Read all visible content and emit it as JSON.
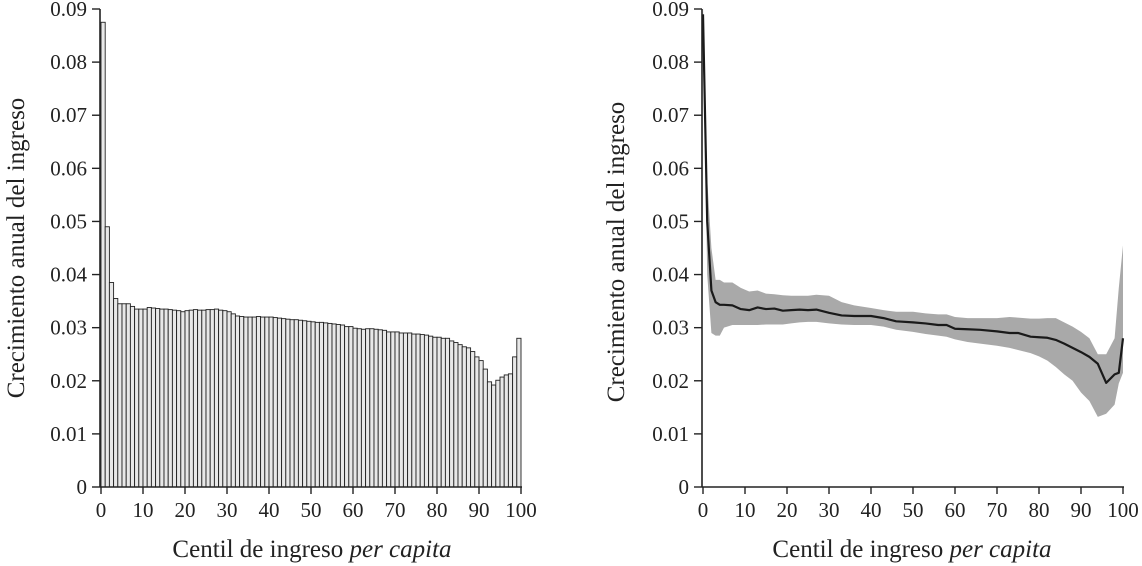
{
  "chart_data": [
    {
      "type": "bar",
      "xlabel": "Centil de ingreso",
      "xlabel_italic": "per capita",
      "ylabel": "Crecimiento anual del ingreso",
      "xlim": [
        0,
        100
      ],
      "ylim": [
        0,
        0.09
      ],
      "xticks": [
        "0",
        "10",
        "20",
        "30",
        "40",
        "50",
        "60",
        "70",
        "80",
        "90",
        "100"
      ],
      "yticks": [
        "0",
        "0.01",
        "0.02",
        "0.03",
        "0.04",
        "0.05",
        "0.06",
        "0.07",
        "0.08",
        "0.09"
      ],
      "bar_color": "#e8e8e8",
      "x": [
        0,
        1,
        2,
        3,
        4,
        5,
        6,
        7,
        8,
        9,
        10,
        11,
        12,
        13,
        14,
        15,
        16,
        17,
        18,
        19,
        20,
        21,
        22,
        23,
        24,
        25,
        26,
        27,
        28,
        29,
        30,
        31,
        32,
        33,
        34,
        35,
        36,
        37,
        38,
        39,
        40,
        41,
        42,
        43,
        44,
        45,
        46,
        47,
        48,
        49,
        50,
        51,
        52,
        53,
        54,
        55,
        56,
        57,
        58,
        59,
        60,
        61,
        62,
        63,
        64,
        65,
        66,
        67,
        68,
        69,
        70,
        71,
        72,
        73,
        74,
        75,
        76,
        77,
        78,
        79,
        80,
        81,
        82,
        83,
        84,
        85,
        86,
        87,
        88,
        89,
        90,
        91,
        92,
        93,
        94,
        95,
        96,
        97,
        98,
        99
      ],
      "values": [
        0.0875,
        0.049,
        0.0385,
        0.0355,
        0.0345,
        0.0345,
        0.0345,
        0.034,
        0.0335,
        0.0335,
        0.0335,
        0.0338,
        0.0337,
        0.0336,
        0.0335,
        0.0335,
        0.0334,
        0.0333,
        0.0332,
        0.033,
        0.0332,
        0.0333,
        0.0334,
        0.0333,
        0.0333,
        0.0334,
        0.0334,
        0.0335,
        0.0333,
        0.0332,
        0.033,
        0.0326,
        0.0322,
        0.0321,
        0.032,
        0.032,
        0.032,
        0.0321,
        0.032,
        0.032,
        0.032,
        0.0319,
        0.0318,
        0.0317,
        0.0316,
        0.0315,
        0.0315,
        0.0314,
        0.0313,
        0.0312,
        0.0311,
        0.031,
        0.031,
        0.0309,
        0.0308,
        0.0307,
        0.0306,
        0.0305,
        0.0302,
        0.0302,
        0.0299,
        0.0298,
        0.0297,
        0.0298,
        0.0298,
        0.0297,
        0.0296,
        0.0295,
        0.0292,
        0.0292,
        0.0292,
        0.029,
        0.029,
        0.029,
        0.0288,
        0.0288,
        0.0287,
        0.0286,
        0.0284,
        0.0282,
        0.0282,
        0.028,
        0.028,
        0.0275,
        0.0272,
        0.0268,
        0.0264,
        0.0262,
        0.0255,
        0.0245,
        0.0238,
        0.0222,
        0.0198,
        0.0192,
        0.0201,
        0.0207,
        0.0211,
        0.0213,
        0.0245,
        0.028
      ]
    },
    {
      "type": "line",
      "xlabel": "Centil de ingreso",
      "xlabel_italic": "per capita",
      "ylabel": "Crecimiento anual del ingreso",
      "xlim": [
        0,
        100
      ],
      "ylim": [
        0,
        0.09
      ],
      "xticks": [
        "0",
        "10",
        "20",
        "30",
        "40",
        "50",
        "60",
        "70",
        "80",
        "90",
        "100"
      ],
      "yticks": [
        "0",
        "0.01",
        "0.02",
        "0.03",
        "0.04",
        "0.05",
        "0.06",
        "0.07",
        "0.08",
        "0.09"
      ],
      "line_color": "#1a1a1a",
      "band_color": "#a9a9a9",
      "series": [
        {
          "x": [
            0,
            1,
            2,
            3,
            4,
            5,
            7,
            9,
            11,
            13,
            15,
            17,
            19,
            21,
            23,
            25,
            27,
            30,
            33,
            36,
            40,
            43,
            46,
            50,
            53,
            56,
            58,
            60,
            63,
            66,
            70,
            73,
            75,
            78,
            80,
            82,
            84,
            86,
            88,
            90,
            92,
            94,
            96,
            98,
            99,
            100
          ],
          "y": [
            0.089,
            0.05,
            0.037,
            0.0348,
            0.0343,
            0.0343,
            0.0342,
            0.0335,
            0.0333,
            0.0338,
            0.0335,
            0.0336,
            0.0332,
            0.0333,
            0.0334,
            0.0333,
            0.0334,
            0.0328,
            0.0323,
            0.0322,
            0.0322,
            0.0318,
            0.0312,
            0.031,
            0.0308,
            0.0305,
            0.0305,
            0.0298,
            0.0297,
            0.0296,
            0.0293,
            0.029,
            0.029,
            0.0283,
            0.0282,
            0.0281,
            0.0277,
            0.027,
            0.0262,
            0.0254,
            0.0245,
            0.0232,
            0.0196,
            0.0212,
            0.0215,
            0.028
          ],
          "lower": [
            0.087,
            0.04,
            0.029,
            0.0285,
            0.0285,
            0.03,
            0.0305,
            0.0305,
            0.0305,
            0.0305,
            0.0306,
            0.0306,
            0.0306,
            0.0308,
            0.031,
            0.0311,
            0.0311,
            0.0308,
            0.0306,
            0.0305,
            0.0305,
            0.0302,
            0.0296,
            0.0292,
            0.0288,
            0.0285,
            0.0283,
            0.0278,
            0.0273,
            0.027,
            0.0266,
            0.0262,
            0.0258,
            0.0252,
            0.0246,
            0.0238,
            0.0226,
            0.0212,
            0.02,
            0.0178,
            0.0162,
            0.0132,
            0.0138,
            0.0155,
            0.0195,
            0.0215
          ],
          "upper": [
            0.0905,
            0.058,
            0.045,
            0.039,
            0.039,
            0.0385,
            0.0385,
            0.0375,
            0.0368,
            0.037,
            0.0364,
            0.0363,
            0.0361,
            0.036,
            0.036,
            0.036,
            0.0362,
            0.036,
            0.0348,
            0.0342,
            0.0337,
            0.0333,
            0.033,
            0.033,
            0.0327,
            0.0325,
            0.0325,
            0.032,
            0.0318,
            0.0318,
            0.0318,
            0.032,
            0.0319,
            0.0317,
            0.0317,
            0.0318,
            0.0318,
            0.031,
            0.0302,
            0.0292,
            0.028,
            0.025,
            0.025,
            0.028,
            0.0375,
            0.0455
          ]
        }
      ]
    }
  ]
}
